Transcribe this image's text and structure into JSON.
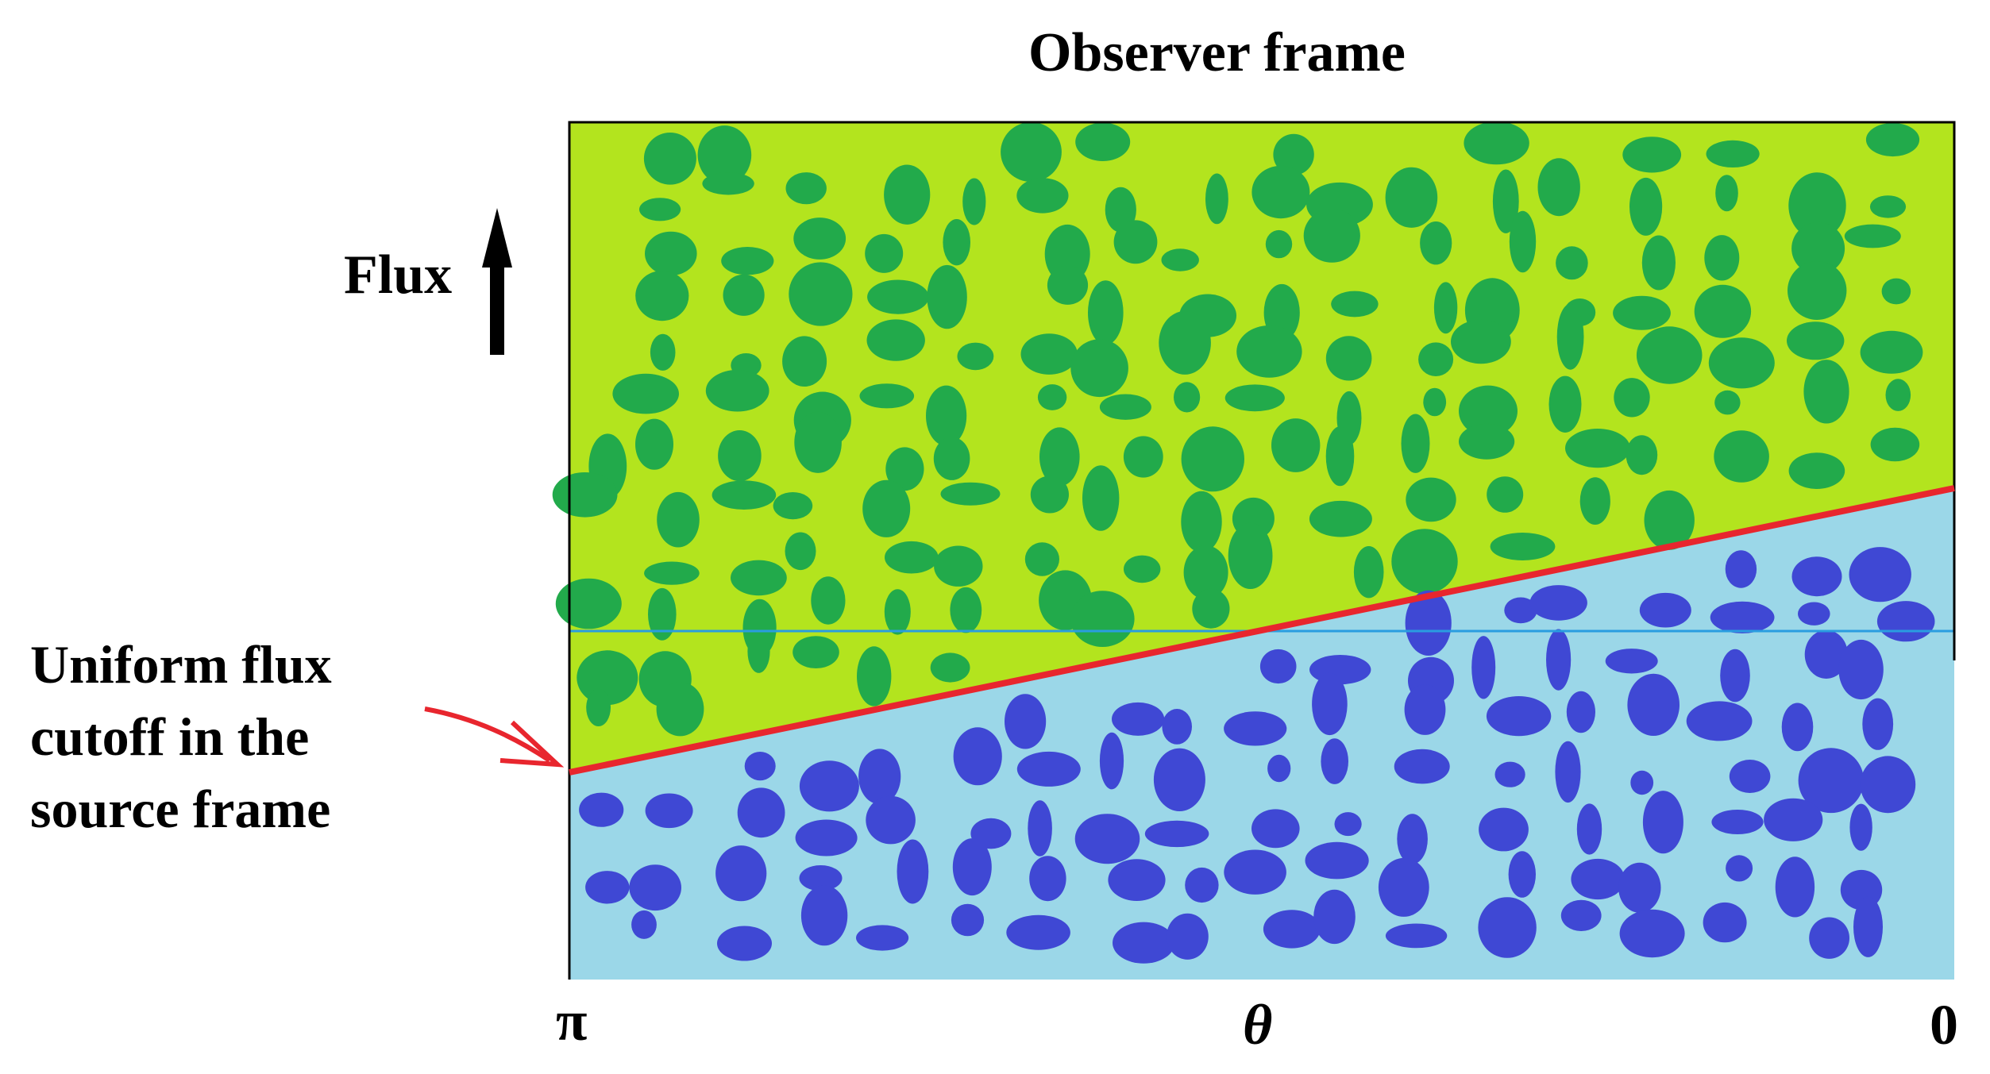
{
  "title": "Observer frame",
  "flux_label": "Flux",
  "cutoff_label_lines": [
    "Uniform flux",
    "cutoff in the",
    "source frame"
  ],
  "axis_ticks": {
    "left": "π",
    "middle": "θ",
    "right": "0"
  },
  "colors": {
    "upper_region": "#b3e41e",
    "upper_spots": "#22aa4b",
    "lower_region": "#9bd7e8",
    "lower_spots": "#3f48d4",
    "cutoff_line": "#e8262e",
    "reference_line": "#2a9de0",
    "arrow": "#e8262e",
    "flux_arrow": "#000000"
  }
}
